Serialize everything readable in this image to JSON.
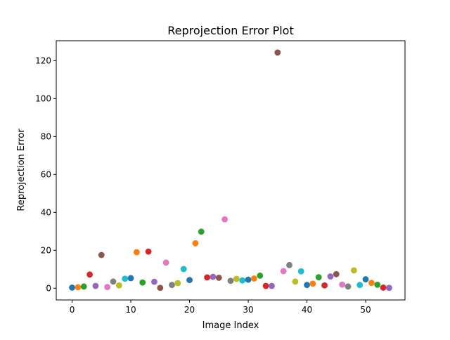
{
  "chart_data": {
    "type": "scatter",
    "title": "Reprojection Error Plot",
    "xlabel": "Image Index",
    "ylabel": "Reprojection Error",
    "xlim": [
      -2.7,
      56.7
    ],
    "ylim": [
      -6.2,
      130.5
    ],
    "xticks": [
      0,
      10,
      20,
      30,
      40,
      50
    ],
    "yticks": [
      0,
      20,
      40,
      60,
      80,
      100,
      120
    ],
    "grid": false,
    "palette": [
      "#1f77b4",
      "#ff7f0e",
      "#2ca02c",
      "#d62728",
      "#9467bd",
      "#8c564b",
      "#e377c2",
      "#7f7f7f",
      "#bcbd22",
      "#17becf"
    ],
    "points": [
      {
        "x": 0,
        "y": 0.3
      },
      {
        "x": 1,
        "y": 0.5
      },
      {
        "x": 2,
        "y": 0.9
      },
      {
        "x": 3,
        "y": 7.2
      },
      {
        "x": 4,
        "y": 1.2
      },
      {
        "x": 5,
        "y": 17.5
      },
      {
        "x": 6,
        "y": 0.6
      },
      {
        "x": 7,
        "y": 3.5
      },
      {
        "x": 8,
        "y": 1.5
      },
      {
        "x": 9,
        "y": 5.0
      },
      {
        "x": 10,
        "y": 5.3
      },
      {
        "x": 11,
        "y": 19.0
      },
      {
        "x": 12,
        "y": 3.0
      },
      {
        "x": 13,
        "y": 19.3
      },
      {
        "x": 14,
        "y": 3.4
      },
      {
        "x": 15,
        "y": 0.2
      },
      {
        "x": 16,
        "y": 13.5
      },
      {
        "x": 17,
        "y": 1.7
      },
      {
        "x": 18,
        "y": 2.7
      },
      {
        "x": 19,
        "y": 10.1
      },
      {
        "x": 20,
        "y": 4.3
      },
      {
        "x": 21,
        "y": 23.7
      },
      {
        "x": 22,
        "y": 29.8
      },
      {
        "x": 23,
        "y": 5.7
      },
      {
        "x": 24,
        "y": 6.0
      },
      {
        "x": 25,
        "y": 5.5
      },
      {
        "x": 26,
        "y": 36.3
      },
      {
        "x": 27,
        "y": 3.9
      },
      {
        "x": 28,
        "y": 4.9
      },
      {
        "x": 29,
        "y": 4.1
      },
      {
        "x": 30,
        "y": 4.5
      },
      {
        "x": 31,
        "y": 5.1
      },
      {
        "x": 32,
        "y": 6.6
      },
      {
        "x": 33,
        "y": 1.2
      },
      {
        "x": 34,
        "y": 1.2
      },
      {
        "x": 35,
        "y": 124.3
      },
      {
        "x": 36,
        "y": 9.0
      },
      {
        "x": 37,
        "y": 12.2
      },
      {
        "x": 38,
        "y": 3.5
      },
      {
        "x": 39,
        "y": 8.9
      },
      {
        "x": 40,
        "y": 1.7
      },
      {
        "x": 41,
        "y": 2.4
      },
      {
        "x": 42,
        "y": 5.8
      },
      {
        "x": 43,
        "y": 1.5
      },
      {
        "x": 44,
        "y": 6.2
      },
      {
        "x": 45,
        "y": 7.4
      },
      {
        "x": 46,
        "y": 1.9
      },
      {
        "x": 47,
        "y": 0.9
      },
      {
        "x": 48,
        "y": 9.4
      },
      {
        "x": 49,
        "y": 1.7
      },
      {
        "x": 50,
        "y": 4.7
      },
      {
        "x": 51,
        "y": 2.8
      },
      {
        "x": 52,
        "y": 1.8
      },
      {
        "x": 53,
        "y": 0.3
      },
      {
        "x": 54,
        "y": 0.2
      }
    ]
  }
}
